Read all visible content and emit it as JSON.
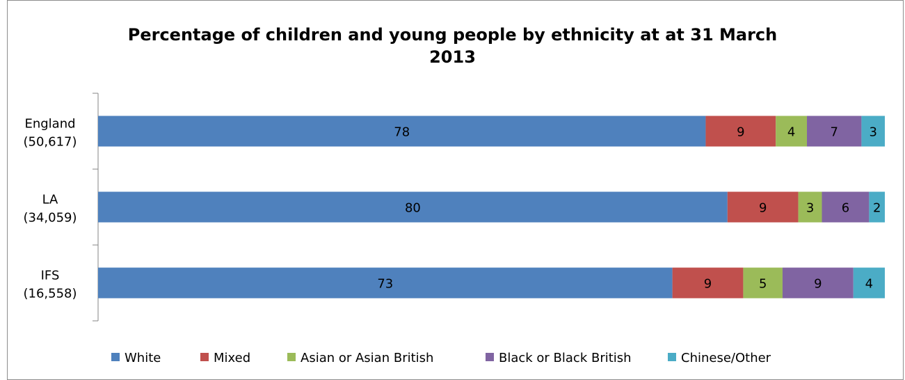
{
  "chart_data": {
    "type": "bar",
    "orientation": "horizontal",
    "stacked": true,
    "title_line1": "Percentage of children and young people by ethnicity at at 31 March",
    "title_line2": "2013",
    "categories": [
      {
        "line1": "England",
        "line2": "(50,617)"
      },
      {
        "line1": "LA",
        "line2": "(34,059)"
      },
      {
        "line1": "IFS",
        "line2": "(16,558)"
      }
    ],
    "series": [
      {
        "name": "White",
        "color": "#4F81BD",
        "values": [
          78,
          80,
          73
        ]
      },
      {
        "name": "Mixed",
        "color": "#C0504D",
        "values": [
          9,
          9,
          9
        ]
      },
      {
        "name": "Asian or Asian British",
        "color": "#9BBB59",
        "values": [
          4,
          3,
          5
        ]
      },
      {
        "name": "Black or Black British",
        "color": "#8064A2",
        "values": [
          7,
          6,
          9
        ]
      },
      {
        "name": "Chinese/Other",
        "color": "#4BACC6",
        "values": [
          3,
          2,
          4
        ]
      }
    ],
    "legend_position": "bottom",
    "grid": false
  }
}
